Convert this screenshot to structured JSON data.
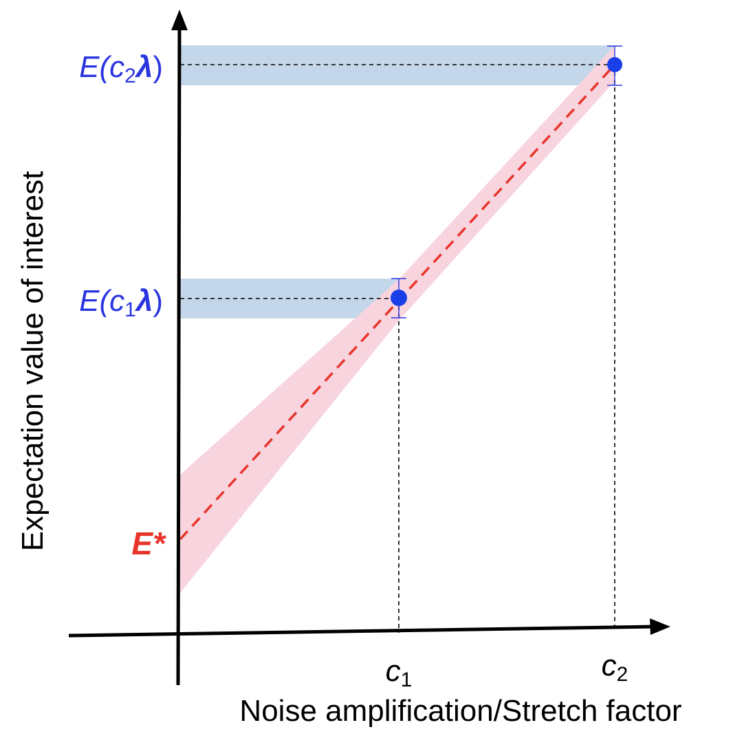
{
  "figure": {
    "y_axis_label": "Expectation value of interest",
    "x_axis_label": "Noise amplification/Stretch factor",
    "x_ticks": [
      {
        "base": "c",
        "sub": "1"
      },
      {
        "base": "c",
        "sub": "2"
      }
    ],
    "y_ticks": [
      {
        "prefix": "E(",
        "base": "c",
        "sub": "2",
        "lambda": "λ",
        "suffix": ")"
      },
      {
        "prefix": "E(",
        "base": "c",
        "sub": "1",
        "lambda": "λ",
        "suffix": ")"
      }
    ],
    "extrapolated_label": "E*",
    "colors": {
      "axis": "#000000",
      "measured_point": "#1a3ee8",
      "measured_text": "#2a35e0",
      "uncertainty_band_y": "#c4d6ea",
      "fit_line": "#e8352c",
      "fit_band": "#f8d4df",
      "extrapolated_text": "#e8352c"
    }
  }
}
